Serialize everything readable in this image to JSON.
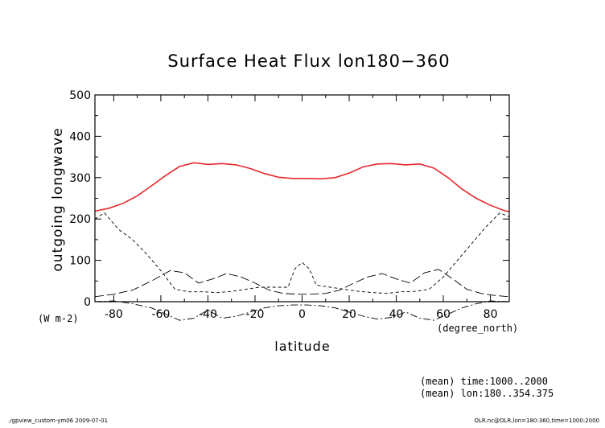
{
  "chart_data": {
    "type": "line",
    "title": "Surface Heat Flux lon180−360",
    "xlabel": "latitude",
    "ylabel": "outgoing longwave",
    "yunits": "(W m-2)",
    "xunits": "(degree_north)",
    "xlim": [
      -88,
      88
    ],
    "ylim": [
      0,
      500
    ],
    "xticks": [
      -80,
      -60,
      -40,
      -20,
      0,
      20,
      40,
      60,
      80
    ],
    "xtick_labels": [
      "-80",
      "-60",
      "-40",
      "-20",
      "0",
      "20",
      "40",
      "60",
      "80"
    ],
    "yticks": [
      0,
      100,
      200,
      300,
      400,
      500
    ],
    "ytick_labels": [
      "0",
      "100",
      "200",
      "300",
      "400",
      "500"
    ],
    "grid": false,
    "series": [
      {
        "color": "#e8282d",
        "style": "solid",
        "x": [
          -88,
          -82,
          -76,
          -70,
          -64,
          -58,
          -52,
          -46,
          -40,
          -34,
          -28,
          -22,
          -16,
          -10,
          -4,
          2,
          8,
          14,
          20,
          26,
          32,
          38,
          44,
          50,
          56,
          62,
          68,
          74,
          80,
          86,
          88
        ],
        "y": [
          219,
          226,
          238,
          256,
          280,
          305,
          327,
          336,
          332,
          334,
          331,
          322,
          310,
          301,
          298,
          298,
          297,
          300,
          311,
          326,
          333,
          334,
          331,
          333,
          323,
          300,
          272,
          250,
          233,
          220,
          218
        ]
      },
      {
        "color": "#000000",
        "style": "dashed",
        "x": [
          -88,
          -84,
          -78,
          -72,
          -66,
          -60,
          -54,
          -48,
          -42,
          -36,
          -30,
          -24,
          -18,
          -12,
          -6,
          -3,
          0,
          3,
          6,
          12,
          18,
          24,
          30,
          36,
          42,
          48,
          54,
          60,
          66,
          72,
          78,
          84,
          88
        ],
        "y": [
          200,
          215,
          175,
          150,
          115,
          75,
          30,
          24,
          24,
          22,
          25,
          30,
          35,
          35,
          35,
          80,
          95,
          80,
          40,
          35,
          30,
          25,
          22,
          20,
          24,
          25,
          30,
          60,
          100,
          140,
          180,
          215,
          205
        ]
      },
      {
        "color": "#000000",
        "style": "longdash",
        "x": [
          -88,
          -80,
          -72,
          -64,
          -56,
          -50,
          -44,
          -38,
          -32,
          -26,
          -20,
          -14,
          -8,
          -2,
          4,
          10,
          16,
          22,
          28,
          34,
          40,
          46,
          52,
          58,
          64,
          70,
          76,
          82,
          88
        ],
        "y": [
          12,
          18,
          28,
          50,
          75,
          70,
          45,
          55,
          68,
          60,
          45,
          28,
          20,
          18,
          18,
          20,
          28,
          45,
          60,
          68,
          55,
          45,
          70,
          78,
          55,
          30,
          20,
          15,
          12
        ]
      },
      {
        "color": "#000000",
        "style": "dashdot",
        "x": [
          -88,
          -80,
          -72,
          -64,
          -58,
          -52,
          -46,
          -40,
          -34,
          -28,
          -22,
          -16,
          -10,
          -4,
          2,
          8,
          14,
          20,
          26,
          32,
          38,
          44,
          50,
          56,
          62,
          68,
          74,
          80,
          88
        ],
        "y": [
          0,
          2,
          -5,
          -15,
          -30,
          -45,
          -40,
          -20,
          -40,
          -35,
          -25,
          -15,
          -10,
          -8,
          -8,
          -10,
          -15,
          -25,
          -35,
          -42,
          -38,
          -25,
          -40,
          -45,
          -30,
          -15,
          -5,
          2,
          0
        ]
      }
    ],
    "annotations": [
      "(mean) time:1000..2000",
      "(mean) lon:180..354.375"
    ]
  },
  "footer": {
    "left": "./gpview_custom-ym06  2009-07-01",
    "right": "OLR.nc@OLR,lon=180:360,time=1000:2000"
  },
  "colors": {
    "axis": "#000000",
    "primary_series": "#e8282d"
  }
}
